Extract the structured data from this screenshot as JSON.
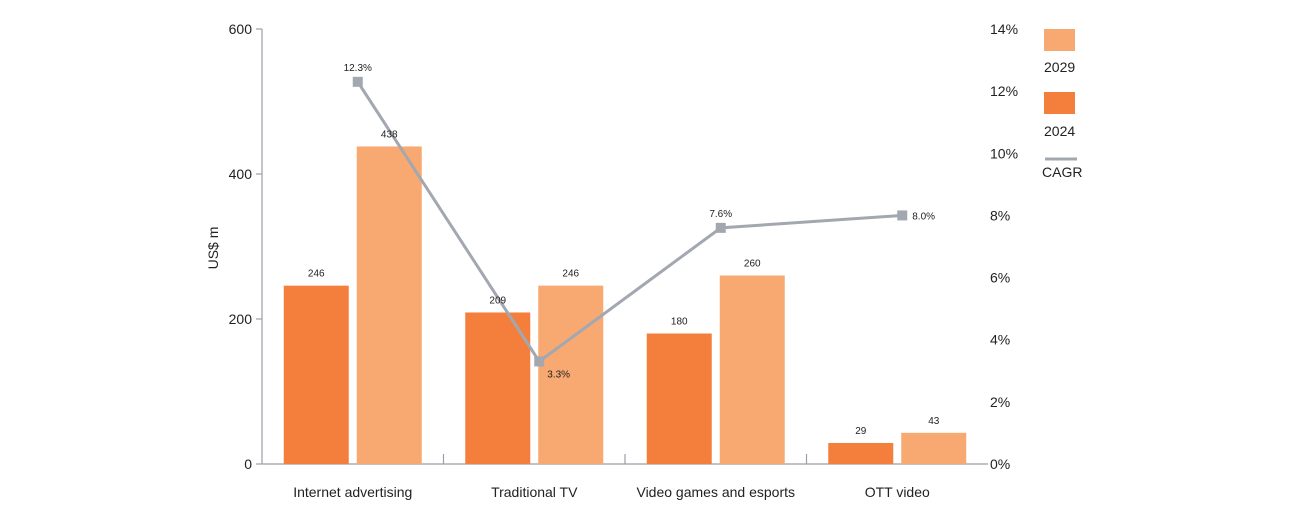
{
  "chart_data": {
    "type": "bar",
    "categories": [
      "Internet advertising",
      "Traditional TV",
      "Video games and esports",
      "OTT video"
    ],
    "series": [
      {
        "name": "2024",
        "values": [
          246,
          209,
          180,
          29
        ],
        "color": "#f47f3c"
      },
      {
        "name": "2029",
        "values": [
          438,
          246,
          260,
          43
        ],
        "color": "#f8a971"
      }
    ],
    "line_series": {
      "name": "CAGR",
      "values": [
        12.3,
        3.3,
        7.6,
        8.0
      ],
      "labels": [
        "12.3%",
        "3.3%",
        "7.6%",
        "8.0%"
      ],
      "color": "#a2a7b0"
    },
    "ylabel": "US$ m",
    "ylim": [
      0,
      600
    ],
    "y_ticks": [
      "0",
      "200",
      "400",
      "600"
    ],
    "y2lim": [
      0,
      14
    ],
    "y2_ticks": [
      "0%",
      "2%",
      "4%",
      "6%",
      "8%",
      "10%",
      "12%",
      "14%"
    ],
    "grid": false,
    "legend": [
      "2029",
      "2024",
      "CAGR"
    ],
    "legend_position": "right"
  }
}
